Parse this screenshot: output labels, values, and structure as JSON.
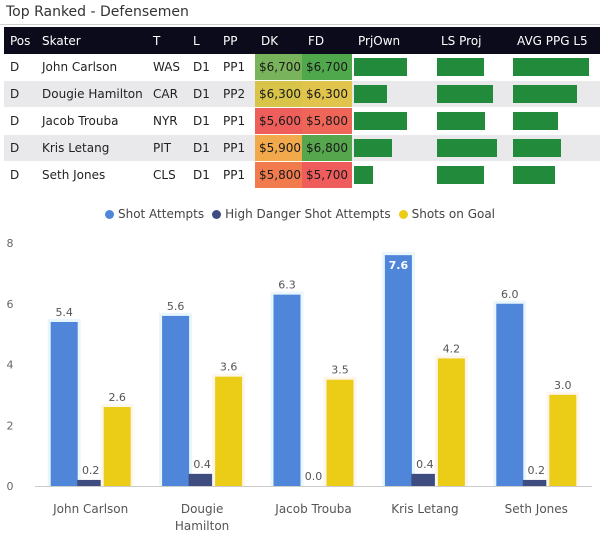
{
  "title": "Top Ranked - Defensemen",
  "table": {
    "headers": [
      "Pos",
      "Skater",
      "T",
      "L",
      "PP",
      "DK",
      "FD",
      "PrjOwn",
      "LS Proj",
      "AVG PPG L5"
    ],
    "rows": [
      {
        "pos": "D",
        "skater": "John Carlson",
        "team": "WAS",
        "line": "D1",
        "pp": "PP1",
        "dk": "$6,700",
        "fd": "$6,700",
        "dk_color": "#79b35c",
        "fd_color": "#4fa84c",
        "prjown": 0.72,
        "ls_proj": 0.69,
        "avg_ppg": 0.95
      },
      {
        "pos": "D",
        "skater": "Dougie Hamilton",
        "team": "CAR",
        "line": "D1",
        "pp": "PP2",
        "dk": "$6,300",
        "fd": "$6,300",
        "dk_color": "#d9c44a",
        "fd_color": "#e1c44c",
        "prjown": 0.45,
        "ls_proj": 0.83,
        "avg_ppg": 0.8
      },
      {
        "pos": "D",
        "skater": "Jacob Trouba",
        "team": "NYR",
        "line": "D1",
        "pp": "PP1",
        "dk": "$5,600",
        "fd": "$5,800",
        "dk_color": "#ee5f5b",
        "fd_color": "#ef6558",
        "prjown": 0.72,
        "ls_proj": 0.71,
        "avg_ppg": 0.56
      },
      {
        "pos": "D",
        "skater": "Kris Letang",
        "team": "PIT",
        "line": "D1",
        "pp": "PP1",
        "dk": "$5,900",
        "fd": "$6,800",
        "dk_color": "#f1a94c",
        "fd_color": "#56a64e",
        "prjown": 0.52,
        "ls_proj": 0.88,
        "avg_ppg": 0.6
      },
      {
        "pos": "D",
        "skater": "Seth Jones",
        "team": "CLS",
        "line": "D1",
        "pp": "PP1",
        "dk": "$5,800",
        "fd": "$5,700",
        "dk_color": "#f27b4e",
        "fd_color": "#ef5c5c",
        "prjown": 0.26,
        "ls_proj": 0.69,
        "avg_ppg": 0.52
      }
    ]
  },
  "legend": [
    {
      "label": "Shot Attempts",
      "color": "#4f86d9"
    },
    {
      "label": "High Danger Shot Attempts",
      "color": "#3f4c7f"
    },
    {
      "label": "Shots on Goal",
      "color": "#ebcd18"
    }
  ],
  "chart_data": {
    "type": "bar",
    "categories": [
      "John Carlson",
      "Dougie Hamilton",
      "Jacob Trouba",
      "Kris Letang",
      "Seth Jones"
    ],
    "category_lines": [
      [
        "John Carlson"
      ],
      [
        "Dougie",
        "Hamilton"
      ],
      [
        "Jacob Trouba"
      ],
      [
        "Kris Letang"
      ],
      [
        "Seth Jones"
      ]
    ],
    "series": [
      {
        "name": "Shot Attempts",
        "values": [
          5.4,
          5.6,
          6.3,
          7.6,
          6.0
        ],
        "color": "#4f86d9"
      },
      {
        "name": "High Danger Shot Attempts",
        "values": [
          0.2,
          0.4,
          0.0,
          0.4,
          0.2
        ],
        "color": "#3f4c7f"
      },
      {
        "name": "Shots on Goal",
        "values": [
          2.6,
          3.6,
          3.5,
          4.2,
          3.0
        ],
        "color": "#ebcd18"
      }
    ],
    "value_labels": [
      [
        "5.4",
        "0.2",
        "2.6"
      ],
      [
        "5.6",
        "0.4",
        "3.6"
      ],
      [
        "6.3",
        "0.0",
        "3.5"
      ],
      [
        "7.6",
        "0.4",
        "4.2"
      ],
      [
        "6.0",
        "0.2",
        "3.0"
      ]
    ],
    "yticks": [
      "0",
      "2",
      "4",
      "6",
      "8"
    ],
    "ylim": [
      0,
      8
    ],
    "legend_position": "top-center"
  }
}
